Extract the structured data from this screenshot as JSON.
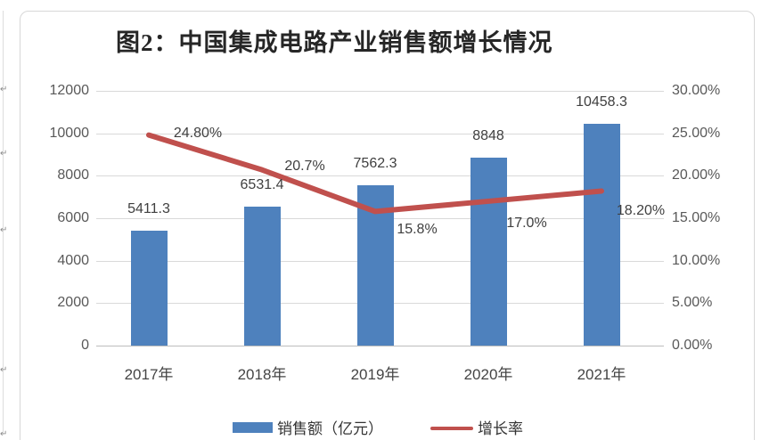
{
  "title": {
    "text": "图2：中国集成电路产业销售额增长情况"
  },
  "chart_data": {
    "type": "bar",
    "subtype": "bar-line-combo",
    "title": "图2：中国集成电路产业销售额增长情况",
    "categories": [
      "2017年",
      "2018年",
      "2019年",
      "2020年",
      "2021年"
    ],
    "series": [
      {
        "name": "销售额（亿元）",
        "type": "bar",
        "axis": "left",
        "color": "#4E81BD",
        "values": [
          5411.3,
          6531.4,
          7562.3,
          8848,
          10458.3
        ],
        "data_labels": [
          "5411.3",
          "6531.4",
          "7562.3",
          "8848",
          "10458.3"
        ]
      },
      {
        "name": "增长率",
        "type": "line",
        "axis": "right",
        "color": "#C0504D",
        "values": [
          24.8,
          20.7,
          15.8,
          17.0,
          18.2
        ],
        "data_labels": [
          "24.80%",
          "20.7%",
          "15.8%",
          "17.0%",
          "18.20%"
        ]
      }
    ],
    "left_axis": {
      "min": 0,
      "max": 12000,
      "ticks": [
        "12000",
        "10000",
        "8000",
        "6000",
        "4000",
        "2000",
        "0"
      ]
    },
    "right_axis": {
      "min": 0,
      "max": 30,
      "ticks": [
        "30.00%",
        "25.00%",
        "20.00%",
        "15.00%",
        "10.00%",
        "5.00%",
        "0.00%"
      ]
    },
    "grid": true,
    "legend_position": "bottom",
    "legend": [
      {
        "label": "销售额（亿元）",
        "color": "#4E81BD",
        "shape": "rect"
      },
      {
        "label": "增长率",
        "color": "#C0504D",
        "shape": "line"
      }
    ]
  },
  "decorations": {
    "paragraph_mark": "↵"
  }
}
